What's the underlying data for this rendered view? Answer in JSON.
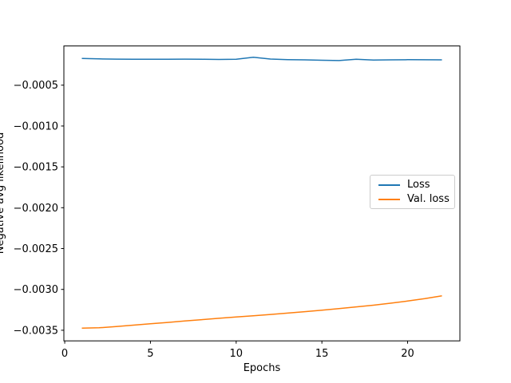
{
  "colors": {
    "loss_line": "#1f77b4",
    "val_loss_line": "#ff7f0e",
    "axis": "#000000",
    "legend_border": "#cccccc",
    "background": "#ffffff"
  },
  "chart_data": {
    "type": "line",
    "title": "",
    "xlabel": "Epochs",
    "ylabel": "Negative avg likelihood",
    "x": [
      1,
      2,
      3,
      4,
      5,
      6,
      7,
      8,
      9,
      10,
      11,
      12,
      13,
      14,
      15,
      16,
      17,
      18,
      19,
      20,
      21,
      22
    ],
    "series": [
      {
        "name": "Loss",
        "color": "#1f77b4",
        "values": [
          -0.000173,
          -0.000178,
          -0.000181,
          -0.000183,
          -0.000182,
          -0.000182,
          -0.000181,
          -0.000183,
          -0.000185,
          -0.000183,
          -0.000159,
          -0.00018,
          -0.000187,
          -0.00019,
          -0.000195,
          -0.000199,
          -0.000183,
          -0.000192,
          -0.00019,
          -0.000188,
          -0.000189,
          -0.00019
        ]
      },
      {
        "name": "Val. loss",
        "color": "#ff7f0e",
        "values": [
          -0.003475,
          -0.00347,
          -0.003455,
          -0.003438,
          -0.00342,
          -0.003404,
          -0.003387,
          -0.00337,
          -0.003354,
          -0.003338,
          -0.003323,
          -0.003307,
          -0.00329,
          -0.003273,
          -0.003254,
          -0.003235,
          -0.003214,
          -0.003193,
          -0.003169,
          -0.003143,
          -0.003113,
          -0.003078
        ]
      }
    ],
    "xlim": [
      -0.05,
      23.05
    ],
    "ylim": [
      -0.00363,
      -2e-05
    ],
    "xticks": [
      0,
      5,
      10,
      15,
      20
    ],
    "xtick_labels": [
      "0",
      "5",
      "10",
      "15",
      "20"
    ],
    "yticks": [
      -0.0005,
      -0.001,
      -0.0015,
      -0.002,
      -0.0025,
      -0.003,
      -0.0035
    ],
    "ytick_labels": [
      "−0.0005",
      "−0.0010",
      "−0.0015",
      "−0.0020",
      "−0.0025",
      "−0.0030",
      "−0.0035"
    ],
    "grid": false,
    "legend_position": "center right"
  }
}
